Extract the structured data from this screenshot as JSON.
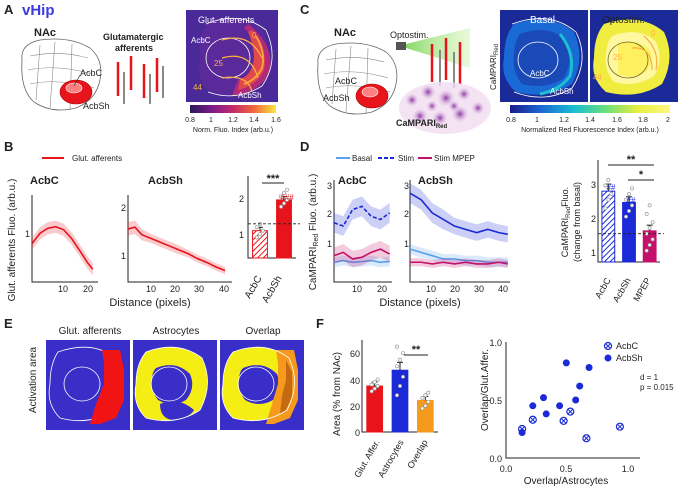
{
  "panels": {
    "A": {
      "label": "A",
      "title": "vHip",
      "nac": "NAc",
      "afferents_label_1": "Glutamatergic",
      "afferents_label_2": "afferents",
      "acbc": "AcbC",
      "acbsh": "AcbSh",
      "heatmap_title": "Glut. afferents",
      "heatmap_acbc": "AcbC",
      "heatmap_acbsh": "AcbSh",
      "iso_labels": [
        "0",
        "25",
        "44"
      ],
      "colorbar_ticks": [
        "0.8",
        "1",
        "1.2",
        "1.4",
        "1.6"
      ],
      "colorbar_label": "Norm. Fluo. Index (arb.u.)"
    },
    "B": {
      "label": "B",
      "legend": "Glut. afferents",
      "sub1_title": "AcbC",
      "sub2_title": "AcbSh",
      "ylabel": "Glut. afferents Fluo. (arb.u.)",
      "xlabel": "Distance (pixels)",
      "sub1_yticks": [
        "1"
      ],
      "sub1_xticks": [
        "10",
        "20"
      ],
      "sub2_yticks": [
        "1",
        "2"
      ],
      "sub2_xticks": [
        "10",
        "20",
        "30",
        "40"
      ],
      "bar_yticks": [
        "1",
        "2"
      ],
      "bar_categories": [
        "AcbC",
        "AcbSh"
      ],
      "sig_stars": "***",
      "sig_hash": "###"
    },
    "C": {
      "label": "C",
      "nac": "NAc",
      "optostim": "Optostim.",
      "acbc": "AcbC",
      "acbsh": "AcbSh",
      "campari": "CaMPARI",
      "campari_sub": "Red",
      "basal_title": "Basal",
      "opto_title": "Optostim.",
      "side_label": "CaMPARI",
      "side_sub": "Red",
      "heatmap_acbc": "AcbC",
      "heatmap_acbsh": "AcbSh",
      "iso_labels": [
        "0",
        "25",
        "44"
      ],
      "colorbar_ticks": [
        "0.8",
        "1",
        "1.2",
        "1.4",
        "1.6",
        "1.8",
        "2"
      ],
      "colorbar_label": "Normalized Red Fluorescence Index (arb.u.)"
    },
    "D": {
      "label": "D",
      "legend": [
        "Basal",
        "Stim",
        "Stim MPEP"
      ],
      "sub1_title": "AcbC",
      "sub2_title": "AcbSh",
      "ylabel_main": "CaMPARI",
      "ylabel_sub": "Red",
      "ylabel_tail": " Fluo. (arb.u.)",
      "xlabel": "Distance (pixels)",
      "sub1_yticks": [
        "1",
        "2",
        "3"
      ],
      "sub1_xticks": [
        "10",
        "20"
      ],
      "sub2_yticks": [
        "1",
        "2",
        "3"
      ],
      "sub2_xticks": [
        "10",
        "20",
        "30",
        "40"
      ],
      "bar_ylabel_1": "CaMPARI",
      "bar_ylabel_sub": "Red",
      "bar_ylabel_tail": "Fluo.",
      "bar_ylabel_2": "(change from basal)",
      "bar_yticks": [
        "1",
        "2",
        "3"
      ],
      "bar_categories": [
        "AcbC",
        "AcbSh",
        "MPEP"
      ],
      "sig_double": "**",
      "sig_single": "*",
      "hash_1": "##",
      "hash_2": "##"
    },
    "E": {
      "label": "E",
      "titles": [
        "Glut. afferents",
        "Astrocytes",
        "Overlap"
      ],
      "side_label": "Activation area"
    },
    "F": {
      "label": "F",
      "bar_ylabel": "Area (% from NAc)",
      "bar_yticks": [
        "0",
        "20",
        "40",
        "60"
      ],
      "bar_categories": [
        "Glut. Affer.",
        "Astrocytes",
        "Overlap"
      ],
      "sig": "**",
      "scatter_ylabel": "Overlap/Glut.Affer.",
      "scatter_xlabel": "Overlap/Astrocytes",
      "scatter_xticks": [
        "0.0",
        "0.5",
        "1.0"
      ],
      "scatter_yticks": [
        "0.0",
        "0.5",
        "1.0"
      ],
      "legend": [
        "AcbC",
        "AcbSh"
      ],
      "stat_d": "d = 1",
      "stat_p": "p = 0.015"
    }
  },
  "colors": {
    "red": "#e8141c",
    "blue_dark": "#1a2ad6",
    "blue_light": "#5aa0ee",
    "magenta": "#c4106a",
    "orange": "#f59a1c",
    "yellow": "#f4ee14",
    "navy_bg": "#3a2ec8",
    "heat_bg": "#5a2a9a"
  },
  "chart_data": [
    {
      "id": "B1",
      "type": "line",
      "title": "AcbC",
      "xlabel": "Distance (pixels)",
      "ylabel": "Glut. afferents Fluo. (arb.u.)",
      "xlim": [
        0,
        25
      ],
      "ylim": [
        0.3,
        2.0
      ],
      "series": [
        {
          "name": "Glut. afferents",
          "color": "#e8141c",
          "x": [
            0,
            3,
            6,
            9,
            12,
            15,
            18,
            21,
            23
          ],
          "y": [
            1.05,
            1.25,
            1.35,
            1.38,
            1.32,
            1.15,
            0.92,
            0.68,
            0.55
          ],
          "err": [
            0.12,
            0.12,
            0.12,
            0.12,
            0.12,
            0.12,
            0.12,
            0.12,
            0.12
          ]
        }
      ]
    },
    {
      "id": "B2",
      "type": "line",
      "title": "AcbSh",
      "xlabel": "Distance (pixels)",
      "ylim": [
        0.3,
        2.6
      ],
      "xlim": [
        0,
        45
      ],
      "series": [
        {
          "name": "Glut. afferents",
          "color": "#e8141c",
          "x": [
            0,
            3,
            6,
            10,
            14,
            18,
            22,
            26,
            30,
            34,
            38,
            42
          ],
          "y": [
            1.7,
            1.75,
            1.55,
            1.45,
            1.35,
            1.25,
            1.15,
            1.05,
            0.92,
            0.82,
            0.7,
            0.6
          ],
          "err": [
            0.18,
            0.18,
            0.15,
            0.12,
            0.12,
            0.12,
            0.12,
            0.1,
            0.1,
            0.1,
            0.1,
            0.1
          ]
        }
      ]
    },
    {
      "id": "B3",
      "type": "bar",
      "ylim": [
        0,
        2.4
      ],
      "reference_line": 1,
      "categories": [
        "AcbC",
        "AcbSh"
      ],
      "values": [
        0.8,
        1.7
      ],
      "errors": [
        0.1,
        0.1
      ],
      "colors": [
        "#e8141c",
        "#e8141c"
      ],
      "hatched": [
        true,
        false
      ],
      "points": [
        [
          0.6,
          0.7,
          0.8,
          0.9,
          1.0
        ],
        [
          1.5,
          1.6,
          1.7,
          1.8,
          1.9,
          2.0
        ]
      ]
    },
    {
      "id": "D1",
      "type": "line",
      "title": "AcbC",
      "xlabel": "Distance (pixels)",
      "ylim": [
        0.3,
        3.4
      ],
      "xlim": [
        0,
        25
      ],
      "series": [
        {
          "name": "Basal",
          "color": "#5aa0ee",
          "x": [
            0,
            4,
            8,
            12,
            16,
            20,
            24
          ],
          "y": [
            0.9,
            0.95,
            0.9,
            0.92,
            0.95,
            0.9,
            0.92
          ],
          "err": [
            0.15,
            0.15,
            0.15,
            0.15,
            0.15,
            0.15,
            0.15
          ]
        },
        {
          "name": "Stim",
          "color": "#1a2ad6",
          "dashed": true,
          "x": [
            0,
            4,
            8,
            12,
            16,
            20,
            24
          ],
          "y": [
            2.1,
            2.0,
            2.5,
            2.6,
            2.3,
            2.2,
            2.4
          ],
          "err": [
            0.3,
            0.3,
            0.3,
            0.3,
            0.3,
            0.3,
            0.3
          ]
        },
        {
          "name": "Stim MPEP",
          "color": "#c4106a",
          "x": [
            0,
            4,
            8,
            12,
            16,
            20,
            24
          ],
          "y": [
            1.1,
            1.2,
            1.0,
            1.05,
            1.2,
            1.3,
            1.15
          ],
          "err": [
            0.25,
            0.25,
            0.25,
            0.25,
            0.25,
            0.25,
            0.25
          ]
        }
      ]
    },
    {
      "id": "D2",
      "type": "line",
      "title": "AcbSh",
      "xlabel": "Distance (pixels)",
      "ylim": [
        0.3,
        3.4
      ],
      "xlim": [
        0,
        45
      ],
      "series": [
        {
          "name": "Basal",
          "color": "#5aa0ee",
          "x": [
            0,
            5,
            10,
            15,
            20,
            25,
            30,
            35,
            40,
            44
          ],
          "y": [
            1.3,
            1.2,
            1.1,
            1.0,
            1.0,
            0.95,
            0.95,
            0.9,
            0.9,
            0.9
          ],
          "err": [
            0.15,
            0.15,
            0.15,
            0.15,
            0.15,
            0.15,
            0.15,
            0.15,
            0.15,
            0.15
          ]
        },
        {
          "name": "Stim",
          "color": "#1a2ad6",
          "dashed": false,
          "x": [
            0,
            5,
            10,
            15,
            20,
            25,
            30,
            35,
            40,
            44
          ],
          "y": [
            3.0,
            2.8,
            2.4,
            2.2,
            2.0,
            1.9,
            1.8,
            1.9,
            1.8,
            1.75
          ],
          "err": [
            0.3,
            0.3,
            0.3,
            0.3,
            0.25,
            0.25,
            0.25,
            0.25,
            0.25,
            0.25
          ]
        },
        {
          "name": "Stim MPEP",
          "color": "#c4106a",
          "x": [
            0,
            5,
            10,
            15,
            20,
            25,
            30,
            35,
            40,
            44
          ],
          "y": [
            0.9,
            0.9,
            0.85,
            0.9,
            0.85,
            0.9,
            0.85,
            0.85,
            0.9,
            0.85
          ],
          "err": [
            0.12,
            0.12,
            0.12,
            0.12,
            0.12,
            0.12,
            0.12,
            0.12,
            0.12,
            0.12
          ]
        }
      ]
    },
    {
      "id": "D3",
      "type": "bar",
      "ylim": [
        0,
        3.6
      ],
      "reference_line": 1,
      "categories": [
        "AcbC",
        "AcbSh",
        "MPEP"
      ],
      "values": [
        2.5,
        2.1,
        1.1
      ],
      "errors": [
        0.25,
        0.2,
        0.2
      ],
      "colors": [
        "#1a2ad6",
        "#1a2ad6",
        "#c4106a"
      ],
      "hatched": [
        true,
        false,
        false
      ],
      "points": [
        [
          1.9,
          2.2,
          2.4,
          2.7,
          2.9
        ],
        [
          1.6,
          1.8,
          2.0,
          2.2,
          2.4,
          2.6
        ],
        [
          0.4,
          0.6,
          0.8,
          1.0,
          1.2,
          1.4,
          1.7,
          2.0
        ]
      ]
    },
    {
      "id": "F1",
      "type": "bar",
      "ylim": [
        0,
        70
      ],
      "ylabel": "Area (% from NAc)",
      "categories": [
        "Glut. Affer.",
        "Astrocytes",
        "Overlap"
      ],
      "values": [
        35,
        47,
        24
      ],
      "errors": [
        3,
        6,
        3
      ],
      "colors": [
        "#e8141c",
        "#1a2ad6",
        "#f59a1c"
      ],
      "points": [
        [
          31,
          33,
          35,
          36,
          38,
          40
        ],
        [
          28,
          35,
          42,
          50,
          55,
          60,
          65
        ],
        [
          18,
          20,
          23,
          26,
          28,
          30
        ]
      ]
    },
    {
      "id": "F2",
      "type": "scatter",
      "xlabel": "Overlap/Astrocytes",
      "ylabel": "Overlap/Glut.Affer.",
      "xlim": [
        0,
        1
      ],
      "ylim": [
        0,
        1
      ],
      "series": [
        {
          "name": "AcbC",
          "marker": "open-cross",
          "color": "#1a2ad6",
          "x": [
            0.12,
            0.2,
            0.43,
            0.6,
            0.85,
            0.48
          ],
          "y": [
            0.25,
            0.33,
            0.32,
            0.17,
            0.27,
            0.4
          ]
        },
        {
          "name": "AcbSh",
          "marker": "filled",
          "color": "#1a2ad6",
          "x": [
            0.12,
            0.2,
            0.28,
            0.3,
            0.4,
            0.45,
            0.52,
            0.55,
            0.62
          ],
          "y": [
            0.22,
            0.45,
            0.52,
            0.38,
            0.45,
            0.82,
            0.5,
            0.62,
            0.78
          ]
        }
      ]
    }
  ]
}
